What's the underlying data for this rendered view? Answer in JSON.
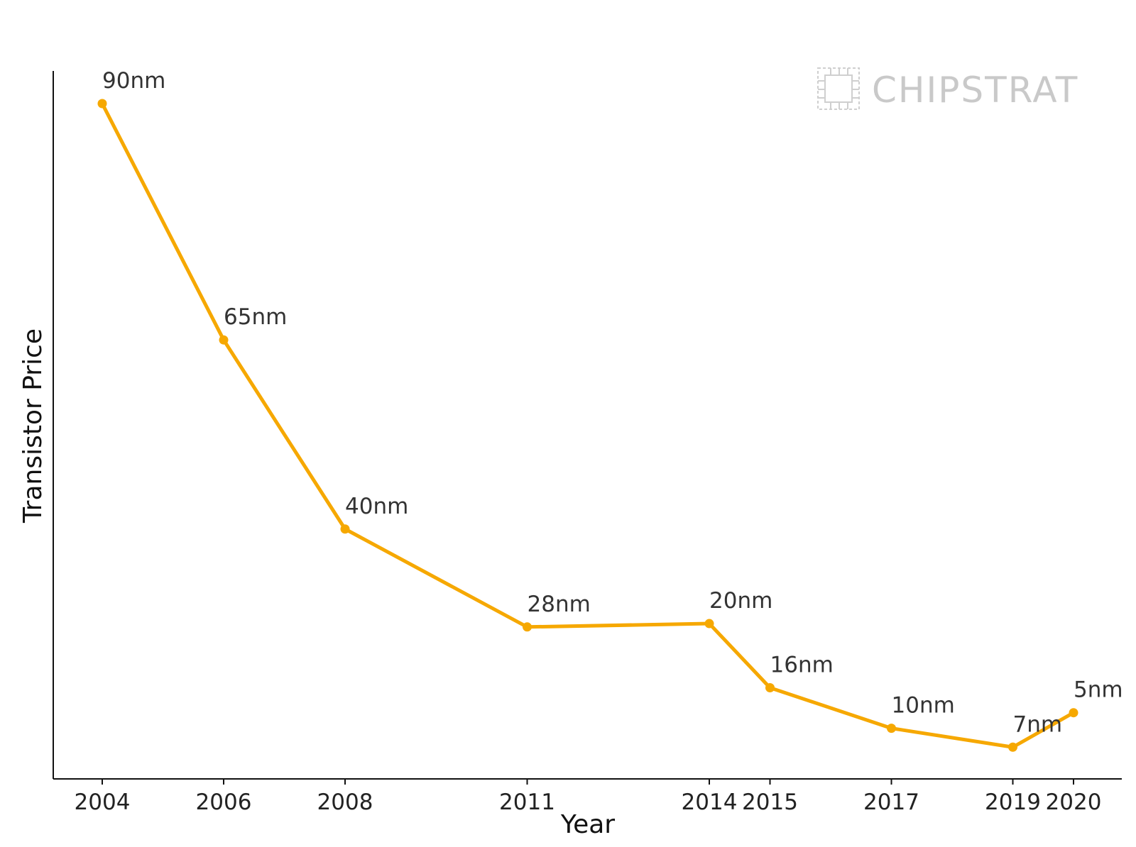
{
  "watermark": {
    "text": "CHIPSTRAT",
    "icon": "chip-icon",
    "color": "#c9c9c9"
  },
  "chart_data": {
    "type": "line",
    "title": "",
    "xlabel": "Year",
    "ylabel": "Transistor Price",
    "x": [
      2004,
      2006,
      2008,
      2011,
      2014,
      2015,
      2017,
      2019,
      2020
    ],
    "x_tick_labels": [
      "2004",
      "2006",
      "2008",
      "2011",
      "2014",
      "2015",
      "2017",
      "2019",
      "2020"
    ],
    "y_ticks_shown": false,
    "ylim": [
      0,
      1
    ],
    "series": [
      {
        "color": "#f6a800",
        "values": [
          1.0,
          0.65,
          0.37,
          0.225,
          0.23,
          0.135,
          0.075,
          0.047,
          0.098
        ],
        "point_labels": [
          "90nm",
          "65nm",
          "40nm",
          "28nm",
          "20nm",
          "16nm",
          "10nm",
          "7nm",
          "5nm"
        ]
      }
    ],
    "grid": false,
    "legend": "none"
  }
}
